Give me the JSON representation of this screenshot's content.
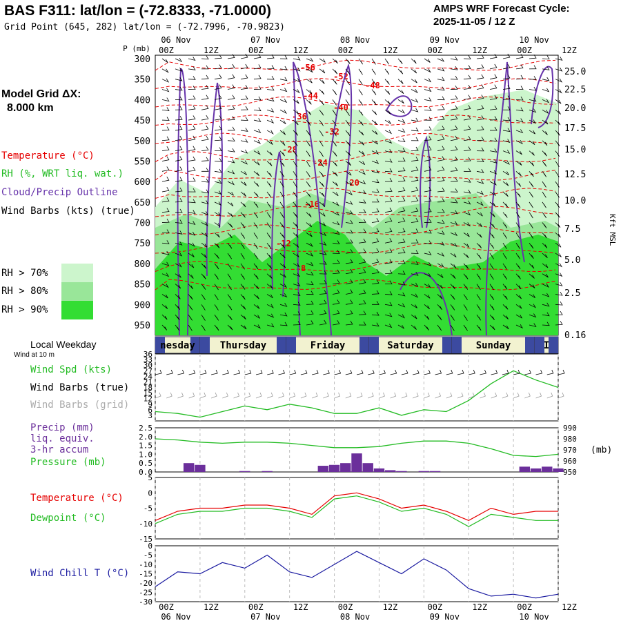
{
  "header": {
    "title": "BAS F311:  lat/lon = (-72.8333, -71.0000)",
    "subtitle": "Grid Point (645, 282) lat/lon = (-72.7996, -70.9823)",
    "cycle_label": "AMPS WRF Forecast Cycle:",
    "cycle_value": "2025-11-05 / 12  Z"
  },
  "time_axis": {
    "hours": [
      0,
      12,
      24,
      36,
      48,
      60,
      72,
      84,
      96,
      108
    ],
    "top_labels": [
      "00Z",
      "12Z",
      "00Z",
      "12Z",
      "00Z",
      "12Z",
      "00Z",
      "12Z",
      "00Z",
      "12Z"
    ],
    "dates": [
      "06 Nov",
      "07 Nov",
      "08 Nov",
      "09 Nov",
      "10 Nov"
    ]
  },
  "legend": {
    "grid_label": "Model Grid ΔX:",
    "grid_value": "8.000 km",
    "temperature": "Temperature (°C)",
    "rh": "RH (%, WRT liq. wat.)",
    "cloud": "Cloud/Precip Outline",
    "barbs": "Wind Barbs (kts) (true)",
    "rh70": "RH > 70%",
    "rh80": "RH > 80%",
    "rh90": "RH > 90%",
    "colors": {
      "rh70": "#ccf5cc",
      "rh80": "#99e699",
      "rh90": "#33dd33",
      "temp": "#e60000",
      "cloud": "#6633aa"
    }
  },
  "sounding": {
    "p_unit": "P (mb)",
    "pressure_labels": [
      "300",
      "350",
      "400",
      "450",
      "500",
      "550",
      "600",
      "650",
      "700",
      "750",
      "800",
      "850",
      "900",
      "950"
    ],
    "height_labels": [
      "25.0",
      "22.5",
      "20.0",
      "17.5",
      "15.0",
      "12.5",
      "10.0",
      "7.5",
      "5.0",
      "2.5",
      "0.16"
    ],
    "height_unit": "Kft MSL",
    "temp_contours": [
      "-56",
      "-52",
      "-48",
      "-44",
      "-40",
      "-36",
      "-32",
      "-28",
      "-24",
      "-20",
      "-16",
      "-12",
      "-8"
    ]
  },
  "weekday": {
    "label": "Local Weekday",
    "days": [
      "nesday",
      "Thursday",
      "Friday",
      "Saturday",
      "Sunday",
      "I"
    ]
  },
  "chart_data": [
    {
      "type": "line",
      "title": "Wind at 10 m",
      "labels": [
        "Wind Spd (kts)",
        "Wind Barbs (true)",
        "Wind Barbs (grid)"
      ],
      "yticks": [
        "36",
        "33",
        "30",
        "27",
        "24",
        "21",
        "18",
        "15",
        "12",
        "9",
        "6",
        "3"
      ],
      "ylim": [
        0,
        36
      ],
      "x": [
        0,
        6,
        12,
        18,
        24,
        30,
        36,
        42,
        48,
        54,
        60,
        66,
        72,
        78,
        84,
        90,
        96,
        102,
        108
      ],
      "series": [
        {
          "name": "Wind Spd (kts)",
          "values": [
            5,
            4,
            2,
            5,
            8,
            6,
            9,
            7,
            4,
            4,
            7,
            3,
            6,
            5,
            11,
            20,
            27,
            22,
            18
          ]
        }
      ]
    },
    {
      "type": "bar",
      "labels": [
        "Precip (mm)",
        "liq. equiv.",
        "3-hr accum",
        "Pressure (mb)"
      ],
      "yticks_left": [
        "2.5",
        "2.0",
        "1.5",
        "1.0",
        "0.5",
        "0.0"
      ],
      "yticks_right": [
        "990",
        "980",
        "970",
        "960",
        "950"
      ],
      "right_unit": "(mb)",
      "ylim": [
        0,
        2.5
      ],
      "y2lim": [
        950,
        990
      ],
      "precip_x": [
        9,
        12,
        24,
        30,
        45,
        48,
        51,
        54,
        57,
        60,
        63,
        66,
        72,
        75,
        99,
        102,
        105,
        108
      ],
      "precip_values": [
        0.5,
        0.4,
        0.05,
        0.05,
        0.35,
        0.4,
        0.5,
        1.05,
        0.5,
        0.2,
        0.1,
        0.05,
        0.05,
        0.05,
        0.3,
        0.2,
        0.3,
        0.2
      ],
      "pressure_x": [
        0,
        6,
        12,
        18,
        24,
        30,
        36,
        42,
        48,
        54,
        60,
        66,
        72,
        78,
        84,
        90,
        96,
        102,
        108
      ],
      "pressure_values": [
        980,
        979,
        977,
        976,
        977,
        977,
        976,
        974,
        972,
        972,
        973,
        976,
        978,
        978,
        976,
        971,
        965,
        964,
        966
      ]
    },
    {
      "type": "line",
      "labels": [
        "Temperature (°C)",
        "Dewpoint (°C)"
      ],
      "yticks": [
        "5",
        "0",
        "-5",
        "-10",
        "-15"
      ],
      "ylim": [
        -15,
        5
      ],
      "x": [
        0,
        6,
        12,
        18,
        24,
        30,
        36,
        42,
        48,
        54,
        60,
        66,
        72,
        78,
        84,
        90,
        96,
        102,
        108
      ],
      "series": [
        {
          "name": "Temperature (°C)",
          "values": [
            -9,
            -6,
            -5,
            -5,
            -4,
            -4,
            -5,
            -7,
            -1,
            0,
            -2,
            -5,
            -4,
            -6,
            -9,
            -5,
            -7,
            -6,
            -6
          ]
        },
        {
          "name": "Dewpoint (°C)",
          "values": [
            -10,
            -7,
            -6,
            -6,
            -5,
            -5,
            -6,
            -8,
            -2,
            -1,
            -3,
            -6,
            -5,
            -7,
            -11,
            -7,
            -8,
            -9,
            -9
          ]
        }
      ]
    },
    {
      "type": "line",
      "labels": [
        "Wind Chill T (°C)"
      ],
      "yticks": [
        "0",
        "-5",
        "-10",
        "-15",
        "-20",
        "-25",
        "-30"
      ],
      "ylim": [
        -30,
        0
      ],
      "x": [
        0,
        6,
        12,
        18,
        24,
        30,
        36,
        42,
        48,
        54,
        60,
        66,
        72,
        78,
        84,
        90,
        96,
        102,
        108
      ],
      "series": [
        {
          "name": "Wind Chill T (°C)",
          "values": [
            -22,
            -14,
            -15,
            -9,
            -12,
            -5,
            -14,
            -17,
            -10,
            -3,
            -9,
            -15,
            -7,
            -13,
            -23,
            -27,
            -26,
            -28,
            -26
          ]
        }
      ]
    }
  ]
}
